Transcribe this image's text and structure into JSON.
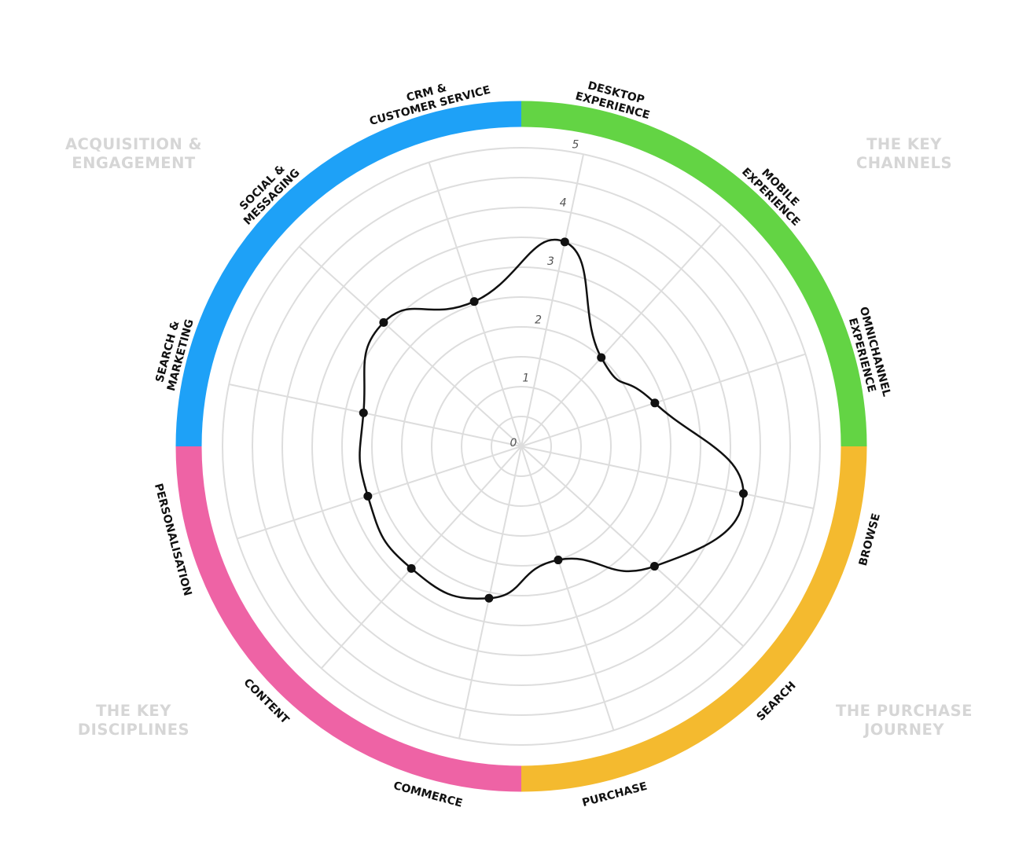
{
  "quadrants": {
    "acquisition": {
      "label": "ACQUISITION & ENGAGEMENT",
      "lines": [
        "ACQUISITION &",
        "ENGAGEMENT"
      ],
      "color": "#1ea1f7"
    },
    "channels": {
      "label": "THE KEY CHANNELS",
      "lines": [
        "THE KEY",
        "CHANNELS"
      ],
      "color": "#63d444"
    },
    "disciplines": {
      "label": "THE KEY DISCIPLINES",
      "lines": [
        "THE KEY",
        "DISCIPLINES"
      ],
      "color": "#ee63a5"
    },
    "journey": {
      "label": "THE PURCHASE JOURNEY",
      "lines": [
        "THE PURCHASE",
        "JOURNEY"
      ],
      "color": "#f4ba2f"
    }
  },
  "chart_data": {
    "type": "radar",
    "categories": [
      "DESKTOP EXPERIENCE",
      "MOBILE EXPERIENCE",
      "OMNICHANNEL EXPERIENCE",
      "BROWSE",
      "SEARCH",
      "PURCHASE",
      "COMMERCE",
      "CONTENT",
      "PERSONALISATION",
      "SEARCH & MARKETING",
      "SOCIAL & MESSAGING",
      "CRM & CUSTOMER SERVICE"
    ],
    "category_lines": [
      [
        "DESKTOP",
        "EXPERIENCE"
      ],
      [
        "MOBILE",
        "EXPERIENCE"
      ],
      [
        "OMNICHANNEL",
        "EXPERIENCE"
      ],
      [
        "BROWSE"
      ],
      [
        "SEARCH"
      ],
      [
        "PURCHASE"
      ],
      [
        "COMMERCE"
      ],
      [
        "CONTENT"
      ],
      [
        "PERSONALISATION"
      ],
      [
        "SEARCH &",
        "MARKETING"
      ],
      [
        "SOCIAL &",
        "MESSAGING"
      ],
      [
        "CRM &",
        "CUSTOMER SERVICE"
      ]
    ],
    "values": [
      3.5,
      2.0,
      2.35,
      3.8,
      3.0,
      2.0,
      2.6,
      2.75,
      2.7,
      2.7,
      3.1,
      2.55
    ],
    "rlim": [
      0,
      5
    ],
    "ticks": [
      "0",
      "1",
      "2",
      "3",
      "4",
      "5"
    ],
    "grid": true,
    "line_color": "#111111"
  }
}
